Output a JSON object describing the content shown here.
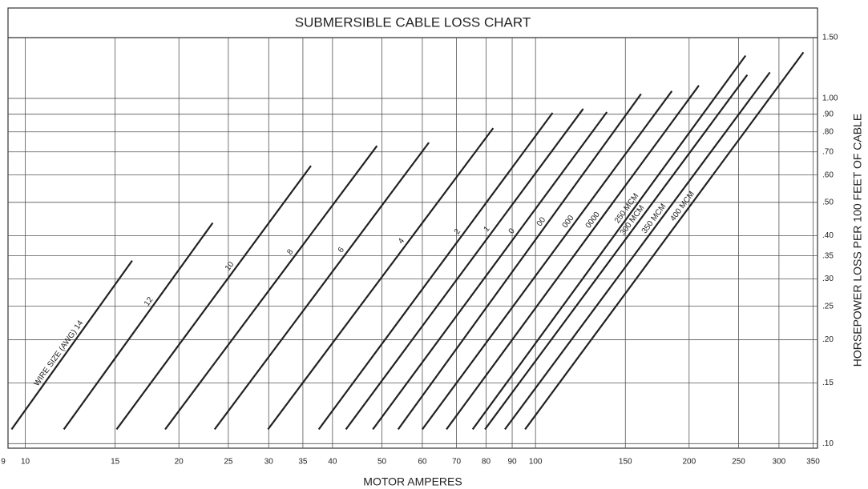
{
  "chart_data": {
    "type": "line",
    "title": "SUBMERSIBLE CABLE LOSS CHART",
    "x_label": "MOTOR AMPERES",
    "y_label": "HORSEPOWER LOSS PER 100 FEET OF CABLE",
    "log_x": true,
    "log_y": true,
    "grid": true,
    "xlim": [
      9.25,
      357
    ],
    "ylim": [
      0.097,
      1.5
    ],
    "xticks": [
      9,
      10,
      15,
      20,
      25,
      30,
      35,
      40,
      50,
      60,
      70,
      80,
      90,
      100,
      150,
      200,
      250,
      300,
      350
    ],
    "yticks": [
      {
        "value": 0.1,
        "label": ".10"
      },
      {
        "value": 0.15,
        "label": ".15"
      },
      {
        "value": 0.2,
        "label": ".20"
      },
      {
        "value": 0.25,
        "label": ".25"
      },
      {
        "value": 0.3,
        "label": ".30"
      },
      {
        "value": 0.35,
        "label": ".35"
      },
      {
        "value": 0.4,
        "label": ".40"
      },
      {
        "value": 0.5,
        "label": ".50"
      },
      {
        "value": 0.6,
        "label": ".60"
      },
      {
        "value": 0.7,
        "label": ".70"
      },
      {
        "value": 0.8,
        "label": ".80"
      },
      {
        "value": 0.9,
        "label": ".90"
      },
      {
        "value": 1.0,
        "label": "1.00"
      },
      {
        "value": 1.5,
        "label": "1.50"
      }
    ],
    "series": [
      {
        "name": "WIRE SIZE (AWG) 14",
        "color": "#222222",
        "x": [
          9.4,
          16.2
        ],
        "values": [
          0.11,
          0.339
        ]
      },
      {
        "name": "12",
        "color": "#222222",
        "x": [
          11.9,
          23.3
        ],
        "values": [
          0.11,
          0.436
        ]
      },
      {
        "name": "10",
        "color": "#222222",
        "x": [
          15.1,
          36.3
        ],
        "values": [
          0.11,
          0.638
        ]
      },
      {
        "name": "8",
        "color": "#222222",
        "x": [
          18.8,
          48.9
        ],
        "values": [
          0.11,
          0.729
        ]
      },
      {
        "name": "6",
        "color": "#222222",
        "x": [
          23.5,
          61.8
        ],
        "values": [
          0.11,
          0.745
        ]
      },
      {
        "name": "4",
        "color": "#222222",
        "x": [
          29.9,
          82.6
        ],
        "values": [
          0.11,
          0.82
        ]
      },
      {
        "name": "2",
        "color": "#222222",
        "x": [
          37.6,
          108
        ],
        "values": [
          0.11,
          0.908
        ]
      },
      {
        "name": "1",
        "color": "#222222",
        "x": [
          42.5,
          124
        ],
        "values": [
          0.11,
          0.933
        ]
      },
      {
        "name": "0",
        "color": "#222222",
        "x": [
          48.0,
          138
        ],
        "values": [
          0.11,
          0.913
        ]
      },
      {
        "name": "00",
        "color": "#222222",
        "x": [
          53.8,
          161
        ],
        "values": [
          0.11,
          1.03
        ]
      },
      {
        "name": "000",
        "color": "#222222",
        "x": [
          60.0,
          185
        ],
        "values": [
          0.11,
          1.05
        ]
      },
      {
        "name": "0000",
        "color": "#222222",
        "x": [
          66.9,
          209
        ],
        "values": [
          0.11,
          1.09
        ]
      },
      {
        "name": "250 MCM",
        "color": "#222222",
        "x": [
          75.3,
          258
        ],
        "values": [
          0.11,
          1.33
        ]
      },
      {
        "name": "300 MCM",
        "color": "#222222",
        "x": [
          79.6,
          260
        ],
        "values": [
          0.11,
          1.17
        ]
      },
      {
        "name": "350 MCM",
        "color": "#222222",
        "x": [
          87.1,
          288
        ],
        "values": [
          0.11,
          1.19
        ]
      },
      {
        "name": "400 MCM",
        "color": "#222222",
        "x": [
          95.4,
          335
        ],
        "values": [
          0.11,
          1.36
        ]
      }
    ]
  }
}
